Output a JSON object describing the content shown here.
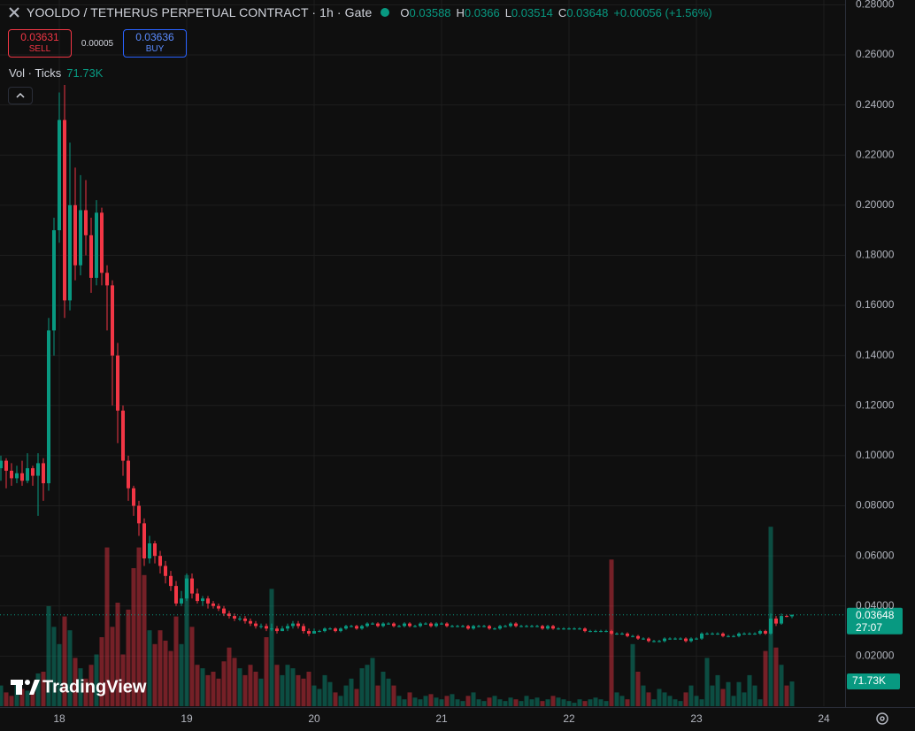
{
  "chart_data": {
    "type": "candlestick",
    "title": "YOOLDO / TETHERUS PERPETUAL CONTRACT · 1h · Gate",
    "ohlc_prefixes": [
      "O",
      "H",
      "L",
      "C"
    ],
    "change": "+0.00056 (+1.56%)",
    "sell_price": "0.03631",
    "sell_label": "SELL",
    "spread": "0.00005",
    "buy_price": "0.03636",
    "buy_label": "BUY",
    "volume_title": "Vol · Ticks",
    "volume_label": "71.73K",
    "countdown": "27:07",
    "brand": "TradingView",
    "up_color": "#089981",
    "down_color": "#f23645",
    "grid": true,
    "categories": [
      null,
      null,
      null,
      null,
      null,
      null,
      null,
      null,
      null,
      null,
      null,
      "18",
      null,
      null,
      null,
      null,
      null,
      null,
      null,
      null,
      null,
      null,
      null,
      null,
      null,
      null,
      null,
      null,
      null,
      null,
      null,
      null,
      null,
      null,
      null,
      "19",
      null,
      null,
      null,
      null,
      null,
      null,
      null,
      null,
      null,
      null,
      null,
      null,
      null,
      null,
      null,
      null,
      null,
      null,
      null,
      null,
      null,
      null,
      null,
      "20",
      null,
      null,
      null,
      null,
      null,
      null,
      null,
      null,
      null,
      null,
      null,
      null,
      null,
      null,
      null,
      null,
      null,
      null,
      null,
      null,
      null,
      null,
      null,
      "21",
      null,
      null,
      null,
      null,
      null,
      null,
      null,
      null,
      null,
      null,
      null,
      null,
      null,
      null,
      null,
      null,
      null,
      null,
      null,
      null,
      null,
      null,
      null,
      "22",
      null,
      null,
      null,
      null,
      null,
      null,
      null,
      null,
      null,
      null,
      null,
      null,
      null,
      null,
      null,
      null,
      null,
      null,
      null,
      null,
      null,
      null,
      null,
      "23",
      null,
      null,
      null,
      null,
      null,
      null,
      null,
      null,
      null,
      null,
      null,
      null,
      null,
      null,
      null,
      null,
      null,
      null,
      null,
      null,
      null,
      null,
      null,
      "24"
    ],
    "open": [
      0.095,
      0.098,
      0.094,
      0.091,
      0.093,
      0.09,
      0.095,
      0.092,
      0.097,
      0.089,
      0.15,
      0.19,
      0.234,
      0.162,
      0.2,
      0.176,
      0.198,
      0.188,
      0.171,
      0.197,
      0.173,
      0.168,
      0.14,
      0.118,
      0.098,
      0.087,
      0.08,
      0.073,
      0.059,
      0.065,
      0.06,
      0.056,
      0.052,
      0.048,
      0.041,
      0.043,
      0.051,
      0.045,
      0.042,
      0.043,
      0.041,
      0.04,
      0.039,
      0.037,
      0.036,
      0.035,
      0.035,
      0.034,
      0.033,
      0.032,
      0.032,
      0.031,
      0.031,
      0.03,
      0.031,
      0.032,
      0.033,
      0.032,
      0.03,
      0.029,
      0.03,
      0.03,
      0.031,
      0.031,
      0.03,
      0.031,
      0.032,
      0.032,
      0.031,
      0.032,
      0.033,
      0.033,
      0.032,
      0.033,
      0.033,
      0.032,
      0.032,
      0.033,
      0.032,
      0.032,
      0.033,
      0.033,
      0.032,
      0.033,
      0.033,
      0.032,
      0.032,
      0.032,
      0.032,
      0.031,
      0.032,
      0.032,
      0.032,
      0.031,
      0.031,
      0.032,
      0.032,
      0.033,
      0.032,
      0.032,
      0.032,
      0.032,
      0.032,
      0.031,
      0.032,
      0.031,
      0.031,
      0.031,
      0.031,
      0.031,
      0.031,
      0.03,
      0.03,
      0.03,
      0.03,
      0.03,
      0.029,
      0.029,
      0.029,
      0.028,
      0.028,
      0.027,
      0.027,
      0.026,
      0.026,
      0.026,
      0.027,
      0.027,
      0.027,
      0.027,
      0.026,
      0.027,
      0.027,
      0.029,
      0.029,
      0.029,
      0.029,
      0.028,
      0.028,
      0.028,
      0.029,
      0.029,
      0.029,
      0.029,
      0.03,
      0.029,
      0.035,
      0.033,
      0.036,
      0.03588,
      null,
      null,
      null,
      null,
      null,
      null
    ],
    "high": [
      0.1,
      0.099,
      0.097,
      0.096,
      0.098,
      0.101,
      0.096,
      0.101,
      0.099,
      0.155,
      0.195,
      0.245,
      0.248,
      0.225,
      0.215,
      0.212,
      0.21,
      0.195,
      0.202,
      0.199,
      0.176,
      0.17,
      0.145,
      0.12,
      0.1,
      0.088,
      0.082,
      0.075,
      0.068,
      0.066,
      0.062,
      0.058,
      0.054,
      0.05,
      0.046,
      0.053,
      0.053,
      0.047,
      0.044,
      0.044,
      0.042,
      0.041,
      0.04,
      0.038,
      0.037,
      0.036,
      0.036,
      0.035,
      0.034,
      0.033,
      0.033,
      0.033,
      0.032,
      0.032,
      0.033,
      0.034,
      0.034,
      0.033,
      0.031,
      0.031,
      0.0305,
      0.0315,
      0.0315,
      0.0315,
      0.0315,
      0.0325,
      0.0325,
      0.0325,
      0.0325,
      0.0335,
      0.0335,
      0.0335,
      0.0335,
      0.0335,
      0.0335,
      0.0325,
      0.0335,
      0.0335,
      0.0325,
      0.0335,
      0.0335,
      0.0335,
      0.0335,
      0.0335,
      0.0335,
      0.0325,
      0.0325,
      0.0325,
      0.0325,
      0.0325,
      0.0325,
      0.0325,
      0.0325,
      0.0315,
      0.0325,
      0.0325,
      0.0335,
      0.0335,
      0.0325,
      0.0325,
      0.0325,
      0.0325,
      0.0325,
      0.0325,
      0.0325,
      0.0315,
      0.0315,
      0.0315,
      0.0315,
      0.0315,
      0.0315,
      0.0305,
      0.0305,
      0.0305,
      0.0305,
      0.0305,
      0.0295,
      0.0295,
      0.0295,
      0.0285,
      0.0285,
      0.0275,
      0.0275,
      0.0265,
      0.0265,
      0.0275,
      0.0275,
      0.0275,
      0.0275,
      0.0275,
      0.0275,
      0.0275,
      0.0295,
      0.0295,
      0.0295,
      0.0295,
      0.0295,
      0.0285,
      0.0285,
      0.0295,
      0.0295,
      0.0295,
      0.0295,
      0.0305,
      0.0305,
      0.037,
      0.036,
      0.037,
      0.0365,
      0.0366,
      null,
      null,
      null,
      null,
      null,
      null
    ],
    "low": [
      0.09,
      0.087,
      0.088,
      0.089,
      0.088,
      0.089,
      0.088,
      0.076,
      0.082,
      0.086,
      0.14,
      0.185,
      0.155,
      0.158,
      0.17,
      0.172,
      0.18,
      0.165,
      0.168,
      0.168,
      0.15,
      0.12,
      0.105,
      0.092,
      0.082,
      0.076,
      0.068,
      0.056,
      0.057,
      0.057,
      0.053,
      0.049,
      0.046,
      0.04,
      0.04,
      0.042,
      0.043,
      0.041,
      0.04,
      0.039,
      0.039,
      0.038,
      0.036,
      0.035,
      0.034,
      0.034,
      0.033,
      0.032,
      0.031,
      0.031,
      0.03,
      0.03,
      0.029,
      0.03,
      0.03,
      0.031,
      0.031,
      0.029,
      0.028,
      0.029,
      0.0295,
      0.0295,
      0.0305,
      0.0295,
      0.0295,
      0.0305,
      0.0315,
      0.0305,
      0.0305,
      0.0315,
      0.0325,
      0.0315,
      0.0315,
      0.0325,
      0.0315,
      0.0315,
      0.0315,
      0.0315,
      0.0315,
      0.0315,
      0.0325,
      0.0315,
      0.0315,
      0.0325,
      0.0315,
      0.0315,
      0.0315,
      0.0315,
      0.0305,
      0.0305,
      0.0315,
      0.0315,
      0.0305,
      0.0305,
      0.0305,
      0.0315,
      0.0315,
      0.0315,
      0.0315,
      0.0315,
      0.0315,
      0.0315,
      0.0305,
      0.0305,
      0.0305,
      0.0305,
      0.0305,
      0.0305,
      0.0305,
      0.0305,
      0.0295,
      0.0295,
      0.0295,
      0.0295,
      0.0295,
      0.0285,
      0.0285,
      0.0285,
      0.0275,
      0.0275,
      0.0265,
      0.0265,
      0.0255,
      0.0255,
      0.0255,
      0.0255,
      0.0265,
      0.0265,
      0.0265,
      0.0255,
      0.0255,
      0.0265,
      0.0265,
      0.0285,
      0.0285,
      0.0285,
      0.0275,
      0.0275,
      0.0275,
      0.0275,
      0.0285,
      0.0285,
      0.0285,
      0.0285,
      0.0285,
      0.0285,
      0.032,
      0.0325,
      0.0355,
      0.03514,
      null,
      null,
      null,
      null,
      null,
      null
    ],
    "close": [
      0.098,
      0.094,
      0.091,
      0.093,
      0.09,
      0.095,
      0.092,
      0.097,
      0.089,
      0.15,
      0.19,
      0.234,
      0.162,
      0.2,
      0.176,
      0.198,
      0.188,
      0.171,
      0.197,
      0.173,
      0.168,
      0.14,
      0.118,
      0.098,
      0.087,
      0.08,
      0.073,
      0.059,
      0.065,
      0.06,
      0.056,
      0.052,
      0.048,
      0.041,
      0.043,
      0.051,
      0.045,
      0.042,
      0.043,
      0.041,
      0.04,
      0.039,
      0.037,
      0.036,
      0.035,
      0.035,
      0.034,
      0.033,
      0.032,
      0.032,
      0.031,
      0.031,
      0.03,
      0.031,
      0.032,
      0.033,
      0.032,
      0.03,
      0.029,
      0.03,
      0.03,
      0.031,
      0.031,
      0.03,
      0.031,
      0.032,
      0.032,
      0.031,
      0.032,
      0.033,
      0.033,
      0.032,
      0.033,
      0.033,
      0.032,
      0.032,
      0.033,
      0.032,
      0.032,
      0.033,
      0.033,
      0.032,
      0.033,
      0.033,
      0.032,
      0.032,
      0.032,
      0.032,
      0.031,
      0.032,
      0.032,
      0.032,
      0.031,
      0.031,
      0.032,
      0.032,
      0.033,
      0.032,
      0.032,
      0.032,
      0.032,
      0.032,
      0.031,
      0.032,
      0.031,
      0.031,
      0.031,
      0.031,
      0.031,
      0.031,
      0.03,
      0.03,
      0.03,
      0.03,
      0.03,
      0.029,
      0.029,
      0.029,
      0.028,
      0.028,
      0.027,
      0.027,
      0.026,
      0.026,
      0.026,
      0.027,
      0.027,
      0.027,
      0.027,
      0.026,
      0.027,
      0.027,
      0.029,
      0.029,
      0.029,
      0.029,
      0.028,
      0.028,
      0.028,
      0.029,
      0.029,
      0.029,
      0.029,
      0.03,
      0.029,
      0.035,
      0.033,
      0.036,
      0.0359,
      0.03648,
      null,
      null,
      null,
      null,
      null,
      null
    ],
    "volume": [
      60000,
      40000,
      30000,
      70000,
      50000,
      45000,
      40000,
      95000,
      100000,
      290000,
      230000,
      180000,
      260000,
      220000,
      140000,
      110000,
      80000,
      120000,
      150000,
      200000,
      460000,
      230000,
      300000,
      150000,
      280000,
      400000,
      460000,
      380000,
      220000,
      180000,
      220000,
      190000,
      160000,
      260000,
      180000,
      380000,
      230000,
      120000,
      110000,
      90000,
      100000,
      80000,
      130000,
      170000,
      140000,
      110000,
      90000,
      120000,
      100000,
      80000,
      200000,
      340000,
      120000,
      90000,
      120000,
      110000,
      90000,
      80000,
      100000,
      60000,
      50000,
      90000,
      70000,
      40000,
      30000,
      60000,
      80000,
      50000,
      110000,
      120000,
      140000,
      60000,
      100000,
      80000,
      60000,
      30000,
      20000,
      40000,
      25000,
      20000,
      30000,
      35000,
      25000,
      20000,
      30000,
      35000,
      20000,
      15000,
      30000,
      40000,
      20000,
      15000,
      25000,
      30000,
      20000,
      15000,
      25000,
      20000,
      15000,
      30000,
      20000,
      25000,
      15000,
      20000,
      30000,
      25000,
      20000,
      15000,
      10000,
      20000,
      15000,
      20000,
      25000,
      20000,
      15000,
      425000,
      40000,
      30000,
      20000,
      180000,
      100000,
      60000,
      40000,
      20000,
      50000,
      40000,
      30000,
      20000,
      15000,
      40000,
      60000,
      30000,
      20000,
      140000,
      60000,
      90000,
      50000,
      70000,
      30000,
      70000,
      40000,
      90000,
      60000,
      20000,
      160000,
      520000,
      170000,
      120000,
      60000,
      71730,
      null,
      null,
      null,
      null,
      null,
      null
    ],
    "ylim": [
      0,
      0.2819
    ],
    "yticks": [
      {
        "value": 0.02,
        "label": "0.02000"
      },
      {
        "value": 0.04,
        "label": "0.04000"
      },
      {
        "value": 0.06,
        "label": "0.06000"
      },
      {
        "value": 0.08,
        "label": "0.08000"
      },
      {
        "value": 0.1,
        "label": "0.10000"
      },
      {
        "value": 0.12,
        "label": "0.12000"
      },
      {
        "value": 0.14,
        "label": "0.14000"
      },
      {
        "value": 0.16,
        "label": "0.16000"
      },
      {
        "value": 0.18,
        "label": "0.18000"
      },
      {
        "value": 0.2,
        "label": "0.20000"
      },
      {
        "value": 0.22,
        "label": "0.22000"
      },
      {
        "value": 0.24,
        "label": "0.24000"
      },
      {
        "value": 0.26,
        "label": "0.26000"
      },
      {
        "value": 0.28,
        "label": "0.28000"
      }
    ],
    "volume_ylim": [
      0,
      600000
    ]
  }
}
